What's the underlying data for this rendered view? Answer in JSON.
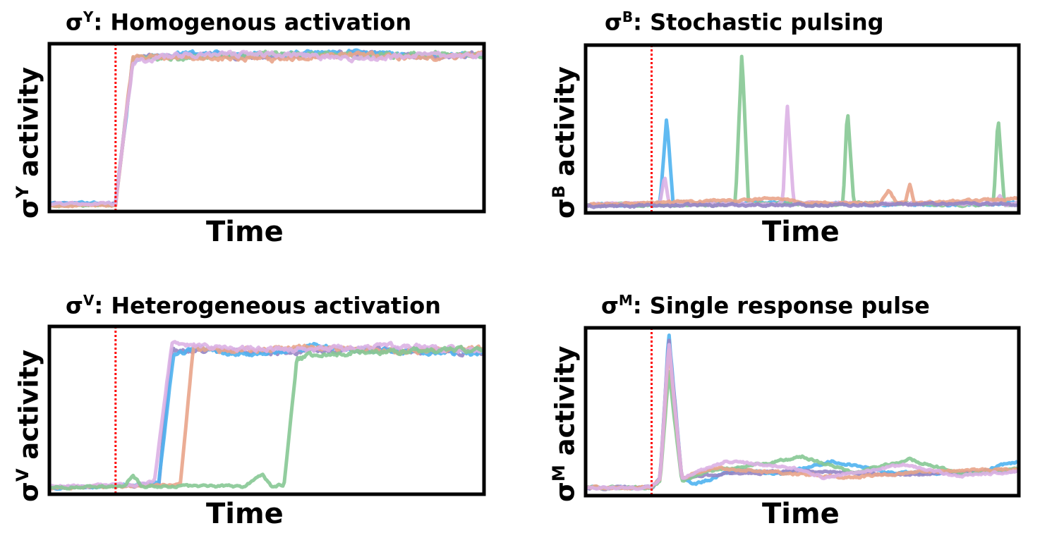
{
  "colors": {
    "blue": "#4fb3f0",
    "green": "#86c894",
    "pink": "#dcb1e4",
    "orange": "#e9a48a",
    "purple": "#9585c4",
    "stimulus": "#ff0000"
  },
  "chart_data": [
    {
      "type": "line",
      "title_prefix": "σ",
      "title_sup": "Y",
      "title_rest": ": Homogenous activation",
      "xlabel": "Time",
      "ylabel_prefix": "σ",
      "ylabel_sup": "Y",
      "ylabel_rest": " activity",
      "x_range": [
        0,
        1
      ],
      "y_range": [
        0,
        1
      ],
      "stimulus_x": 0.15,
      "series": [
        {
          "color": "purple",
          "values": [
            [
              0,
              0.04
            ],
            [
              0.15,
              0.04
            ],
            [
              0.19,
              0.92
            ],
            [
              0.3,
              0.94
            ],
            [
              0.5,
              0.93
            ],
            [
              0.7,
              0.95
            ],
            [
              0.9,
              0.93
            ],
            [
              1,
              0.94
            ]
          ]
        },
        {
          "color": "blue",
          "values": [
            [
              0,
              0.04
            ],
            [
              0.15,
              0.04
            ],
            [
              0.19,
              0.91
            ],
            [
              0.3,
              0.95
            ],
            [
              0.5,
              0.94
            ],
            [
              0.7,
              0.96
            ],
            [
              0.9,
              0.93
            ],
            [
              1,
              0.94
            ]
          ]
        },
        {
          "color": "green",
          "values": [
            [
              0,
              0.03
            ],
            [
              0.15,
              0.03
            ],
            [
              0.19,
              0.93
            ],
            [
              0.3,
              0.92
            ],
            [
              0.5,
              0.95
            ],
            [
              0.7,
              0.93
            ],
            [
              0.9,
              0.95
            ],
            [
              1,
              0.93
            ]
          ]
        },
        {
          "color": "orange",
          "values": [
            [
              0,
              0.03
            ],
            [
              0.15,
              0.03
            ],
            [
              0.19,
              0.92
            ],
            [
              0.3,
              0.93
            ],
            [
              0.5,
              0.91
            ],
            [
              0.7,
              0.94
            ],
            [
              0.9,
              0.92
            ],
            [
              1,
              0.95
            ]
          ]
        },
        {
          "color": "pink",
          "values": [
            [
              0,
              0.04
            ],
            [
              0.15,
              0.04
            ],
            [
              0.19,
              0.9
            ],
            [
              0.3,
              0.94
            ],
            [
              0.5,
              0.95
            ],
            [
              0.7,
              0.92
            ],
            [
              0.9,
              0.94
            ],
            [
              1,
              0.93
            ]
          ]
        }
      ]
    },
    {
      "type": "line",
      "title_prefix": "σ",
      "title_sup": "B",
      "title_rest": ": Stochastic pulsing",
      "xlabel": "Time",
      "ylabel_prefix": "σ",
      "ylabel_sup": "B",
      "ylabel_rest": " activity",
      "x_range": [
        0,
        1
      ],
      "y_range": [
        0,
        1
      ],
      "stimulus_x": 0.15,
      "series": [
        {
          "color": "blue",
          "values": [
            [
              0,
              0.04
            ],
            [
              0.15,
              0.04
            ],
            [
              0.17,
              0.06
            ],
            [
              0.185,
              0.57
            ],
            [
              0.2,
              0.05
            ],
            [
              0.5,
              0.05
            ],
            [
              0.8,
              0.04
            ],
            [
              1,
              0.05
            ]
          ]
        },
        {
          "color": "green",
          "values": [
            [
              0,
              0.04
            ],
            [
              0.32,
              0.04
            ],
            [
              0.345,
              0.06
            ],
            [
              0.36,
              0.98
            ],
            [
              0.375,
              0.05
            ],
            [
              0.57,
              0.04
            ],
            [
              0.595,
              0.05
            ],
            [
              0.605,
              0.63
            ],
            [
              0.62,
              0.05
            ],
            [
              0.93,
              0.04
            ],
            [
              0.945,
              0.06
            ],
            [
              0.955,
              0.58
            ],
            [
              0.97,
              0.04
            ],
            [
              1,
              0.05
            ]
          ]
        },
        {
          "color": "pink",
          "values": [
            [
              0,
              0.04
            ],
            [
              0.17,
              0.05
            ],
            [
              0.18,
              0.22
            ],
            [
              0.19,
              0.05
            ],
            [
              0.44,
              0.04
            ],
            [
              0.455,
              0.06
            ],
            [
              0.465,
              0.66
            ],
            [
              0.48,
              0.05
            ],
            [
              0.95,
              0.05
            ],
            [
              0.96,
              0.1
            ],
            [
              0.97,
              0.04
            ],
            [
              1,
              0.05
            ]
          ]
        },
        {
          "color": "orange",
          "values": [
            [
              0,
              0.04
            ],
            [
              0.45,
              0.08
            ],
            [
              0.5,
              0.05
            ],
            [
              0.68,
              0.05
            ],
            [
              0.7,
              0.13
            ],
            [
              0.72,
              0.05
            ],
            [
              0.74,
              0.06
            ],
            [
              0.75,
              0.17
            ],
            [
              0.76,
              0.05
            ],
            [
              1,
              0.08
            ]
          ]
        },
        {
          "color": "purple",
          "values": [
            [
              0,
              0.03
            ],
            [
              0.3,
              0.04
            ],
            [
              0.6,
              0.04
            ],
            [
              0.9,
              0.05
            ],
            [
              1,
              0.04
            ]
          ]
        }
      ]
    },
    {
      "type": "line",
      "title_prefix": "σ",
      "title_sup": "V",
      "title_rest": ": Heterogeneous activation",
      "xlabel": "Time",
      "ylabel_prefix": "σ",
      "ylabel_sup": "V",
      "ylabel_rest": " activity",
      "x_range": [
        0,
        1
      ],
      "y_range": [
        0,
        1
      ],
      "stimulus_x": 0.15,
      "series": [
        {
          "color": "purple",
          "values": [
            [
              0,
              0.03
            ],
            [
              0.15,
              0.04
            ],
            [
              0.25,
              0.05
            ],
            [
              0.28,
              0.87
            ],
            [
              0.35,
              0.86
            ],
            [
              0.5,
              0.85
            ],
            [
              0.7,
              0.87
            ],
            [
              1,
              0.85
            ]
          ]
        },
        {
          "color": "blue",
          "values": [
            [
              0,
              0.03
            ],
            [
              0.15,
              0.04
            ],
            [
              0.25,
              0.06
            ],
            [
              0.285,
              0.85
            ],
            [
              0.35,
              0.87
            ],
            [
              0.5,
              0.84
            ],
            [
              0.62,
              0.9
            ],
            [
              0.75,
              0.86
            ],
            [
              1,
              0.85
            ]
          ]
        },
        {
          "color": "orange",
          "values": [
            [
              0,
              0.03
            ],
            [
              0.15,
              0.04
            ],
            [
              0.3,
              0.05
            ],
            [
              0.33,
              0.88
            ],
            [
              0.4,
              0.86
            ],
            [
              0.6,
              0.88
            ],
            [
              0.8,
              0.86
            ],
            [
              1,
              0.87
            ]
          ]
        },
        {
          "color": "pink",
          "values": [
            [
              0,
              0.04
            ],
            [
              0.2,
              0.05
            ],
            [
              0.24,
              0.07
            ],
            [
              0.28,
              0.9
            ],
            [
              0.4,
              0.88
            ],
            [
              0.6,
              0.87
            ],
            [
              0.8,
              0.89
            ],
            [
              1,
              0.86
            ]
          ]
        },
        {
          "color": "green",
          "values": [
            [
              0,
              0.03
            ],
            [
              0.17,
              0.04
            ],
            [
              0.19,
              0.11
            ],
            [
              0.21,
              0.04
            ],
            [
              0.45,
              0.04
            ],
            [
              0.49,
              0.11
            ],
            [
              0.51,
              0.04
            ],
            [
              0.54,
              0.05
            ],
            [
              0.57,
              0.82
            ],
            [
              0.7,
              0.85
            ],
            [
              0.85,
              0.86
            ],
            [
              1,
              0.87
            ]
          ]
        }
      ]
    },
    {
      "type": "line",
      "title_prefix": "σ",
      "title_sup": "M",
      "title_rest": ": Single response pulse",
      "xlabel": "Time",
      "ylabel_prefix": "σ",
      "ylabel_sup": "M",
      "ylabel_rest": " activity",
      "x_range": [
        0,
        1
      ],
      "y_range": [
        0,
        1
      ],
      "stimulus_x": 0.15,
      "series": [
        {
          "color": "blue",
          "values": [
            [
              0,
              0.04
            ],
            [
              0.15,
              0.04
            ],
            [
              0.17,
              0.1
            ],
            [
              0.19,
              0.98
            ],
            [
              0.22,
              0.1
            ],
            [
              0.25,
              0.06
            ],
            [
              0.35,
              0.15
            ],
            [
              0.45,
              0.12
            ],
            [
              0.57,
              0.2
            ],
            [
              0.7,
              0.13
            ],
            [
              0.9,
              0.13
            ],
            [
              1,
              0.2
            ]
          ]
        },
        {
          "color": "purple",
          "values": [
            [
              0,
              0.04
            ],
            [
              0.15,
              0.04
            ],
            [
              0.17,
              0.1
            ],
            [
              0.19,
              0.95
            ],
            [
              0.22,
              0.1
            ],
            [
              0.3,
              0.12
            ],
            [
              0.5,
              0.14
            ],
            [
              0.7,
              0.12
            ],
            [
              1,
              0.14
            ]
          ]
        },
        {
          "color": "green",
          "values": [
            [
              0,
              0.04
            ],
            [
              0.15,
              0.04
            ],
            [
              0.17,
              0.08
            ],
            [
              0.19,
              0.75
            ],
            [
              0.22,
              0.08
            ],
            [
              0.3,
              0.15
            ],
            [
              0.4,
              0.18
            ],
            [
              0.5,
              0.23
            ],
            [
              0.62,
              0.13
            ],
            [
              0.75,
              0.21
            ],
            [
              0.88,
              0.12
            ],
            [
              1,
              0.16
            ]
          ]
        },
        {
          "color": "orange",
          "values": [
            [
              0,
              0.04
            ],
            [
              0.15,
              0.04
            ],
            [
              0.17,
              0.1
            ],
            [
              0.19,
              0.9
            ],
            [
              0.22,
              0.1
            ],
            [
              0.3,
              0.16
            ],
            [
              0.45,
              0.13
            ],
            [
              0.6,
              0.1
            ],
            [
              0.8,
              0.14
            ],
            [
              1,
              0.15
            ]
          ]
        },
        {
          "color": "pink",
          "values": [
            [
              0,
              0.04
            ],
            [
              0.15,
              0.04
            ],
            [
              0.17,
              0.1
            ],
            [
              0.19,
              0.92
            ],
            [
              0.22,
              0.1
            ],
            [
              0.32,
              0.2
            ],
            [
              0.48,
              0.16
            ],
            [
              0.55,
              0.1
            ],
            [
              0.74,
              0.18
            ],
            [
              0.86,
              0.11
            ],
            [
              1,
              0.14
            ]
          ]
        }
      ]
    }
  ]
}
